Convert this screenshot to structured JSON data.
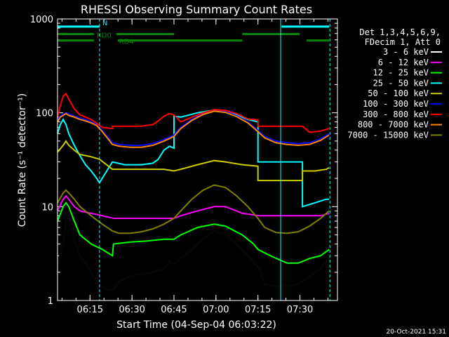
{
  "chart_data": {
    "type": "line",
    "title": "RHESSI Observing Summary Count Rates",
    "xlabel": "Start Time (04-Sep-04 06:03:22)",
    "ylabel": "Count Rate (s⁻¹ detector⁻¹)",
    "y_scale": "log",
    "ylim": [
      1,
      1000
    ],
    "xlim_minutes": [
      0,
      100
    ],
    "x_ticks": [
      {
        "label": "06:15",
        "t": 11.6
      },
      {
        "label": "06:30",
        "t": 26.6
      },
      {
        "label": "06:45",
        "t": 41.6
      },
      {
        "label": "07:00",
        "t": 56.6
      },
      {
        "label": "07:15",
        "t": 71.6
      },
      {
        "label": "07:30",
        "t": 86.6
      }
    ],
    "y_ticks": [
      {
        "label": "1",
        "v": 1
      },
      {
        "label": "10",
        "v": 10
      },
      {
        "label": "100",
        "v": 100
      },
      {
        "label": "1000",
        "v": 1000
      }
    ],
    "header_lines": [
      "Det 1,3,4,5,6,9,",
      "FDecim 1, Att 0"
    ],
    "series": [
      {
        "name": "3 - 6 keV",
        "color": "#000000",
        "points": [
          [
            0,
            2.5
          ],
          [
            2,
            4
          ],
          [
            3,
            7
          ],
          [
            4,
            9
          ],
          [
            5,
            7
          ],
          [
            6,
            4.5
          ],
          [
            8,
            3
          ],
          [
            10,
            2.5
          ],
          [
            12,
            2
          ],
          [
            14,
            1.6
          ],
          [
            16,
            1.4
          ],
          [
            18,
            1.3
          ],
          [
            20,
            1.3
          ],
          [
            22,
            1.6
          ],
          [
            26,
            1.8
          ],
          [
            30,
            1.9
          ],
          [
            34,
            2
          ],
          [
            38,
            2.2
          ],
          [
            40,
            2.6
          ],
          [
            41.6,
            2.4
          ],
          [
            44,
            2.8
          ],
          [
            48,
            3.5
          ],
          [
            52,
            4.5
          ],
          [
            56,
            5.5
          ],
          [
            60,
            5
          ],
          [
            64,
            4
          ],
          [
            68,
            3
          ],
          [
            72,
            2.2
          ],
          [
            74,
            1.5
          ],
          [
            78,
            1.4
          ],
          [
            82,
            1.4
          ],
          [
            86,
            1.5
          ],
          [
            90,
            1.8
          ],
          [
            94,
            2.2
          ],
          [
            97,
            2.8
          ]
        ]
      },
      {
        "name": "6 - 12 keV",
        "color": "#ff00ff",
        "points": [
          [
            0,
            9
          ],
          [
            2,
            12
          ],
          [
            3,
            13
          ],
          [
            4,
            12
          ],
          [
            6,
            10
          ],
          [
            8,
            9
          ],
          [
            12,
            8.5
          ],
          [
            16,
            8
          ],
          [
            20,
            7.5
          ],
          [
            30,
            7.5
          ],
          [
            40,
            7.5
          ],
          [
            41.6,
            7.5
          ],
          [
            44,
            8
          ],
          [
            50,
            9
          ],
          [
            56,
            10
          ],
          [
            60,
            10
          ],
          [
            66,
            8.5
          ],
          [
            72,
            8
          ],
          [
            80,
            8
          ],
          [
            88,
            8
          ],
          [
            94,
            8
          ],
          [
            97,
            8.5
          ]
        ]
      },
      {
        "name": "12 - 25 keV",
        "color": "#00ff00",
        "points": [
          [
            0,
            7
          ],
          [
            2,
            10
          ],
          [
            3,
            11
          ],
          [
            4,
            10
          ],
          [
            6,
            7
          ],
          [
            8,
            5
          ],
          [
            12,
            4
          ],
          [
            16,
            3.5
          ],
          [
            19.6,
            3
          ],
          [
            20,
            4
          ],
          [
            26,
            4.2
          ],
          [
            32,
            4.3
          ],
          [
            38,
            4.5
          ],
          [
            41.6,
            4.5
          ],
          [
            44,
            5
          ],
          [
            50,
            6
          ],
          [
            56,
            6.5
          ],
          [
            60,
            6.2
          ],
          [
            66,
            5
          ],
          [
            70,
            4
          ],
          [
            71.6,
            3.5
          ],
          [
            76,
            3
          ],
          [
            82,
            2.5
          ],
          [
            86,
            2.5
          ],
          [
            90,
            2.8
          ],
          [
            94,
            3
          ],
          [
            97,
            3.5
          ]
        ]
      },
      {
        "name": "25 - 50 keV",
        "color": "#00ffff",
        "points": [
          [
            0,
            60
          ],
          [
            1,
            75
          ],
          [
            2,
            85
          ],
          [
            3,
            75
          ],
          [
            4,
            60
          ],
          [
            6,
            45
          ],
          [
            8,
            35
          ],
          [
            10,
            28
          ],
          [
            12,
            24
          ],
          [
            14,
            20
          ],
          [
            15,
            18
          ],
          [
            19.6,
            30
          ],
          [
            24,
            28
          ],
          [
            30,
            28
          ],
          [
            34,
            29
          ],
          [
            36,
            32
          ],
          [
            38,
            40
          ],
          [
            40,
            44
          ],
          [
            41.6,
            42
          ],
          [
            41.6,
            92
          ],
          [
            44,
            90
          ],
          [
            50,
            100
          ],
          [
            56,
            107
          ],
          [
            62,
            100
          ],
          [
            68,
            85
          ],
          [
            71.6,
            80
          ],
          [
            71.6,
            30
          ],
          [
            76,
            30
          ],
          [
            82,
            30
          ],
          [
            87.5,
            30
          ],
          [
            87.5,
            10
          ],
          [
            92,
            11
          ],
          [
            96,
            12
          ],
          [
            97,
            12
          ]
        ]
      },
      {
        "name": "50 - 100 keV",
        "color": "#cccc00",
        "points": [
          [
            0,
            38
          ],
          [
            2,
            45
          ],
          [
            3,
            50
          ],
          [
            4,
            45
          ],
          [
            6,
            40
          ],
          [
            8,
            36
          ],
          [
            12,
            34
          ],
          [
            15,
            32
          ],
          [
            19.6,
            25
          ],
          [
            24,
            25
          ],
          [
            30,
            25
          ],
          [
            38,
            25
          ],
          [
            41.6,
            24
          ],
          [
            44,
            25
          ],
          [
            50,
            28
          ],
          [
            56,
            31
          ],
          [
            60,
            30
          ],
          [
            66,
            28
          ],
          [
            71.6,
            27
          ],
          [
            71.6,
            19
          ],
          [
            76,
            19
          ],
          [
            82,
            19
          ],
          [
            87.5,
            19
          ],
          [
            87.5,
            24
          ],
          [
            92,
            24
          ],
          [
            96,
            25
          ],
          [
            97,
            26
          ]
        ]
      },
      {
        "name": "100 - 300 keV",
        "color": "#0000ff",
        "points": [
          [
            0,
            85
          ],
          [
            1,
            92
          ],
          [
            2,
            96
          ],
          [
            3,
            100
          ],
          [
            4,
            98
          ],
          [
            5,
            95
          ],
          [
            6,
            92
          ],
          [
            8,
            88
          ],
          [
            10,
            85
          ],
          [
            12,
            80
          ],
          [
            14,
            75
          ],
          [
            16,
            65
          ],
          [
            18,
            55
          ],
          [
            19.6,
            48
          ],
          [
            22,
            46
          ],
          [
            26,
            45
          ],
          [
            30,
            45
          ],
          [
            34,
            47
          ],
          [
            38,
            52
          ],
          [
            41.6,
            58
          ],
          [
            44,
            70
          ],
          [
            48,
            85
          ],
          [
            52,
            98
          ],
          [
            56,
            106
          ],
          [
            60,
            103
          ],
          [
            64,
            93
          ],
          [
            68,
            80
          ],
          [
            71.6,
            65
          ],
          [
            74,
            56
          ],
          [
            78,
            50
          ],
          [
            82,
            48
          ],
          [
            86,
            47
          ],
          [
            90,
            48
          ],
          [
            94,
            53
          ],
          [
            97,
            60
          ]
        ]
      },
      {
        "name": "300 - 800 keV",
        "color": "#ff0000",
        "points": [
          [
            0,
            90
          ],
          [
            1,
            120
          ],
          [
            2,
            150
          ],
          [
            3,
            160
          ],
          [
            4,
            140
          ],
          [
            6,
            110
          ],
          [
            8,
            95
          ],
          [
            12,
            85
          ],
          [
            16,
            70
          ],
          [
            19.6,
            68
          ],
          [
            19.6,
            72
          ],
          [
            24,
            72
          ],
          [
            30,
            72
          ],
          [
            34,
            75
          ],
          [
            36,
            82
          ],
          [
            38,
            92
          ],
          [
            40,
            98
          ],
          [
            41.6,
            95
          ],
          [
            44,
            80
          ],
          [
            48,
            90
          ],
          [
            52,
            100
          ],
          [
            56,
            108
          ],
          [
            60,
            106
          ],
          [
            64,
            98
          ],
          [
            68,
            86
          ],
          [
            71.6,
            84
          ],
          [
            71.6,
            72
          ],
          [
            76,
            72
          ],
          [
            82,
            72
          ],
          [
            87.5,
            72
          ],
          [
            90,
            62
          ],
          [
            94,
            64
          ],
          [
            97,
            68
          ]
        ]
      },
      {
        "name": "800 - 7000 keV",
        "color": "#ff8800",
        "points": [
          [
            0,
            80
          ],
          [
            1,
            90
          ],
          [
            2,
            94
          ],
          [
            3,
            98
          ],
          [
            4,
            94
          ],
          [
            5,
            92
          ],
          [
            6,
            90
          ],
          [
            8,
            85
          ],
          [
            10,
            82
          ],
          [
            12,
            78
          ],
          [
            14,
            73
          ],
          [
            16,
            63
          ],
          [
            18,
            53
          ],
          [
            19.6,
            46
          ],
          [
            22,
            44
          ],
          [
            26,
            43
          ],
          [
            30,
            43
          ],
          [
            34,
            45
          ],
          [
            38,
            50
          ],
          [
            41.6,
            56
          ],
          [
            44,
            68
          ],
          [
            48,
            83
          ],
          [
            52,
            96
          ],
          [
            56,
            104
          ],
          [
            60,
            101
          ],
          [
            64,
            91
          ],
          [
            68,
            78
          ],
          [
            71.6,
            63
          ],
          [
            74,
            54
          ],
          [
            78,
            48
          ],
          [
            82,
            46
          ],
          [
            86,
            45
          ],
          [
            90,
            46
          ],
          [
            94,
            51
          ],
          [
            97,
            58
          ]
        ]
      },
      {
        "name": "7000 - 15000 keV",
        "color": "#808000",
        "points": [
          [
            0,
            11
          ],
          [
            2,
            14
          ],
          [
            3,
            15
          ],
          [
            4,
            14
          ],
          [
            6,
            12
          ],
          [
            8,
            10
          ],
          [
            12,
            8
          ],
          [
            16,
            6.5
          ],
          [
            19.6,
            5.5
          ],
          [
            22,
            5.2
          ],
          [
            26,
            5.2
          ],
          [
            30,
            5.4
          ],
          [
            34,
            5.8
          ],
          [
            38,
            6.5
          ],
          [
            41.6,
            7.5
          ],
          [
            44,
            9
          ],
          [
            48,
            12
          ],
          [
            52,
            15
          ],
          [
            56,
            17
          ],
          [
            60,
            16
          ],
          [
            64,
            13
          ],
          [
            68,
            10
          ],
          [
            71.6,
            7.5
          ],
          [
            74,
            6
          ],
          [
            78,
            5.3
          ],
          [
            82,
            5.2
          ],
          [
            86,
            5.4
          ],
          [
            90,
            6.2
          ],
          [
            94,
            7.5
          ],
          [
            97,
            9
          ]
        ]
      }
    ],
    "flags": [
      {
        "label": "",
        "color": "#00ffff",
        "y_level": 830,
        "segments": [
          [
            0,
            15
          ],
          [
            80,
            97
          ]
        ]
      },
      {
        "label": "N",
        "color": "#00ffff",
        "y_level": 830,
        "label_t": 16
      },
      {
        "label": "RD0",
        "color": "#008800",
        "y_level": 690,
        "segments": [
          [
            0,
            13
          ],
          [
            21,
            41.6
          ],
          [
            66,
            86.5
          ]
        ]
      },
      {
        "label": "RD4",
        "color": "#008800",
        "y_level": 590,
        "segments": [
          [
            0,
            13
          ],
          [
            21.5,
            41.6
          ],
          [
            41.6,
            66
          ],
          [
            89,
            97
          ]
        ]
      }
    ],
    "vertical_markers": [
      {
        "t": 0,
        "style": "solid",
        "color": "#00ffff"
      },
      {
        "t": 15,
        "style": "dashed",
        "color": "#00ffff"
      },
      {
        "t": 79.7,
        "style": "solid",
        "color": "#00ffff"
      },
      {
        "t": 97.3,
        "style": "dashed",
        "color": "#00ffff"
      }
    ]
  },
  "footer_timestamp": "20-Oct-2021 15:31"
}
